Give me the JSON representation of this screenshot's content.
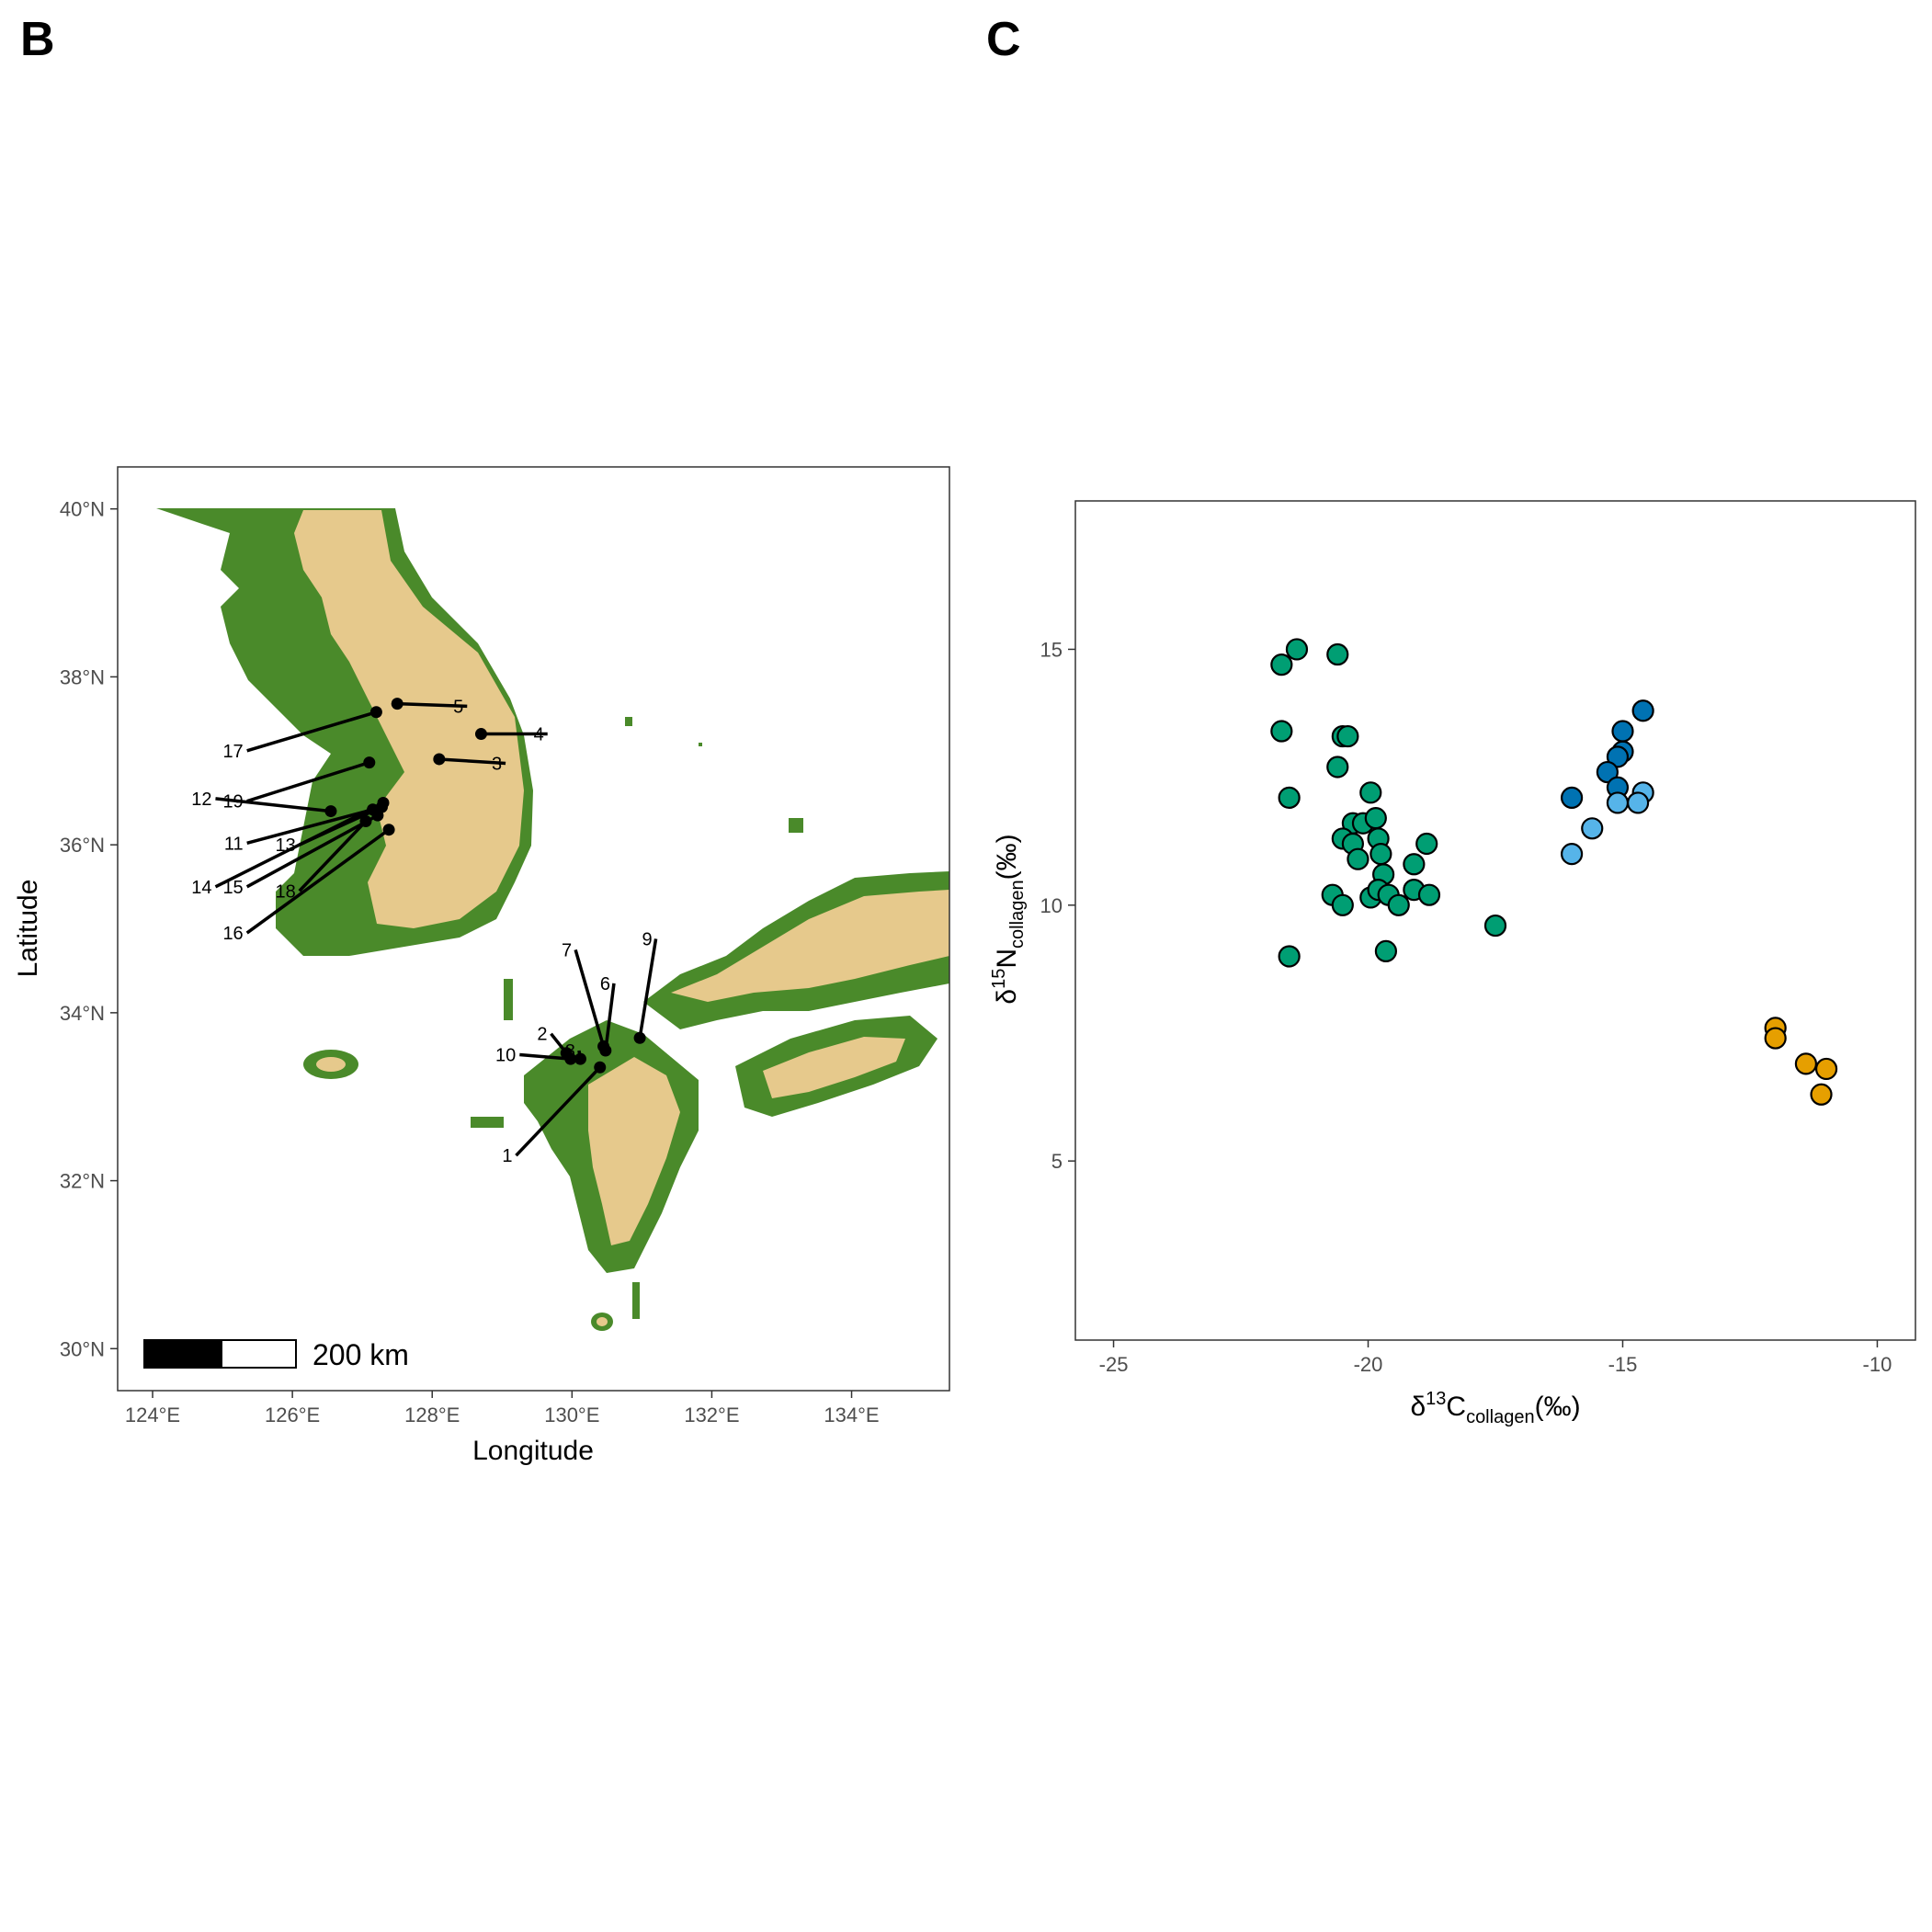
{
  "panel_b": {
    "letter": "B",
    "xlabel": "Longitude",
    "ylabel": "Latitude",
    "x_ticks": [
      {
        "value": 124,
        "label": "124°E"
      },
      {
        "value": 126,
        "label": "126°E"
      },
      {
        "value": 128,
        "label": "128°E"
      },
      {
        "value": 130,
        "label": "130°E"
      },
      {
        "value": 132,
        "label": "132°E"
      },
      {
        "value": 134,
        "label": "134°E"
      }
    ],
    "y_ticks": [
      {
        "value": 30,
        "label": "30°N"
      },
      {
        "value": 32,
        "label": "32°N"
      },
      {
        "value": 34,
        "label": "34°N"
      },
      {
        "value": 36,
        "label": "36°N"
      },
      {
        "value": 38,
        "label": "38°N"
      },
      {
        "value": 40,
        "label": "40°N"
      }
    ],
    "scale_bar_label": "200 km",
    "colors": {
      "lowland": "#4a8a2a",
      "highland": "#e6c98c",
      "point": "#000000"
    }
  },
  "chart_data": [
    {
      "type": "map",
      "panel": "B",
      "xlim": [
        123.5,
        135.4
      ],
      "ylim": [
        29.5,
        40.5
      ],
      "sites": [
        {
          "id": "1",
          "lon": 130.4,
          "lat": 33.35,
          "label_lon": 129.2,
          "label_lat": 32.3
        },
        {
          "id": "2",
          "lon": 129.92,
          "lat": 33.52,
          "label_lon": 129.7,
          "label_lat": 33.75
        },
        {
          "id": "3",
          "lon": 128.1,
          "lat": 37.02,
          "label_lon": 129.05,
          "label_lat": 36.97
        },
        {
          "id": "4",
          "lon": 128.7,
          "lat": 37.32,
          "label_lon": 129.65,
          "label_lat": 37.32
        },
        {
          "id": "5",
          "lon": 127.5,
          "lat": 37.68,
          "label_lon": 128.5,
          "label_lat": 37.65
        },
        {
          "id": "6",
          "lon": 130.48,
          "lat": 33.55,
          "label_lon": 130.6,
          "label_lat": 34.35
        },
        {
          "id": "7",
          "lon": 130.45,
          "lat": 33.6,
          "label_lon": 130.05,
          "label_lat": 34.75
        },
        {
          "id": "8",
          "lon": 130.12,
          "lat": 33.45,
          "label_lon": 130.1,
          "label_lat": 33.55
        },
        {
          "id": "9",
          "lon": 130.97,
          "lat": 33.7,
          "label_lon": 131.2,
          "label_lat": 34.88
        },
        {
          "id": "10",
          "lon": 129.98,
          "lat": 33.45,
          "label_lon": 129.25,
          "label_lat": 33.5
        },
        {
          "id": "11",
          "lon": 127.15,
          "lat": 36.42,
          "label_lon": 125.35,
          "label_lat": 36.02
        },
        {
          "id": "12",
          "lon": 126.55,
          "lat": 36.4,
          "label_lon": 124.9,
          "label_lat": 36.55
        },
        {
          "id": "13",
          "lon": 127.28,
          "lat": 36.45,
          "label_lon": 126.1,
          "label_lat": 36.0
        },
        {
          "id": "14",
          "lon": 127.3,
          "lat": 36.5,
          "label_lon": 124.9,
          "label_lat": 35.5
        },
        {
          "id": "15",
          "lon": 127.22,
          "lat": 36.35,
          "label_lon": 125.35,
          "label_lat": 35.5
        },
        {
          "id": "16",
          "lon": 127.38,
          "lat": 36.18,
          "label_lon": 125.35,
          "label_lat": 34.95
        },
        {
          "id": "17",
          "lon": 127.2,
          "lat": 37.58,
          "label_lon": 125.35,
          "label_lat": 37.12
        },
        {
          "id": "18",
          "lon": 127.05,
          "lat": 36.28,
          "label_lon": 126.1,
          "label_lat": 35.45
        },
        {
          "id": "19",
          "lon": 127.1,
          "lat": 36.98,
          "label_lon": 125.35,
          "label_lat": 36.52
        }
      ]
    },
    {
      "type": "scatter",
      "panel": "C",
      "title": "",
      "xlim": [
        -25.75,
        -9.25
      ],
      "ylim": [
        1.5,
        17.9
      ],
      "x_ticks": [
        -25,
        -20,
        -15,
        -10
      ],
      "y_ticks": [
        5,
        10,
        15
      ],
      "series": [
        {
          "color": "#009e73",
          "points": [
            [
              -21.7,
              14.7
            ],
            [
              -21.4,
              15.0
            ],
            [
              -20.6,
              14.9
            ],
            [
              -21.7,
              13.4
            ],
            [
              -21.55,
              12.1
            ],
            [
              -20.5,
              13.3
            ],
            [
              -20.4,
              13.3
            ],
            [
              -20.6,
              12.7
            ],
            [
              -19.95,
              12.2
            ],
            [
              -20.3,
              11.6
            ],
            [
              -20.1,
              11.6
            ],
            [
              -19.85,
              11.7
            ],
            [
              -20.5,
              11.3
            ],
            [
              -20.3,
              11.2
            ],
            [
              -19.8,
              11.3
            ],
            [
              -20.2,
              10.9
            ],
            [
              -19.75,
              11.0
            ],
            [
              -18.85,
              11.2
            ],
            [
              -19.1,
              10.8
            ],
            [
              -19.7,
              10.6
            ],
            [
              -20.7,
              10.2
            ],
            [
              -20.5,
              10.0
            ],
            [
              -19.95,
              10.15
            ],
            [
              -19.8,
              10.3
            ],
            [
              -19.6,
              10.2
            ],
            [
              -19.4,
              10.0
            ],
            [
              -19.1,
              10.3
            ],
            [
              -18.8,
              10.2
            ],
            [
              -21.55,
              9.0
            ],
            [
              -19.65,
              9.1
            ],
            [
              -17.5,
              9.6
            ]
          ]
        },
        {
          "color": "#0072b2",
          "points": [
            [
              -14.6,
              13.8
            ],
            [
              -15.0,
              13.4
            ],
            [
              -15.0,
              13.0
            ],
            [
              -15.1,
              12.9
            ],
            [
              -15.3,
              12.6
            ],
            [
              -15.1,
              12.3
            ],
            [
              -16.0,
              12.1
            ]
          ]
        },
        {
          "color": "#56b4e9",
          "points": [
            [
              -14.6,
              12.2
            ],
            [
              -14.7,
              12.0
            ],
            [
              -15.1,
              12.0
            ],
            [
              -15.6,
              11.5
            ],
            [
              -16.0,
              11.0
            ]
          ]
        },
        {
          "color": "#e69f00",
          "points": [
            [
              -12.0,
              7.6
            ],
            [
              -12.0,
              7.4
            ],
            [
              -11.4,
              6.9
            ],
            [
              -11.0,
              6.8
            ],
            [
              -11.1,
              6.3
            ]
          ]
        }
      ]
    }
  ],
  "panel_c": {
    "letter": "C",
    "x_tick_labels": [
      "-25",
      "-20",
      "-15",
      "-10"
    ],
    "y_tick_labels": [
      "5",
      "10",
      "15"
    ],
    "xlabel": {
      "delta": "δ",
      "sup": "13",
      "base": "C",
      "sub": "collagen",
      "unit": "(‰)"
    },
    "ylabel": {
      "delta": "δ",
      "sup": "15",
      "base": "N",
      "sub": "collagen",
      "unit": "(‰)"
    }
  }
}
